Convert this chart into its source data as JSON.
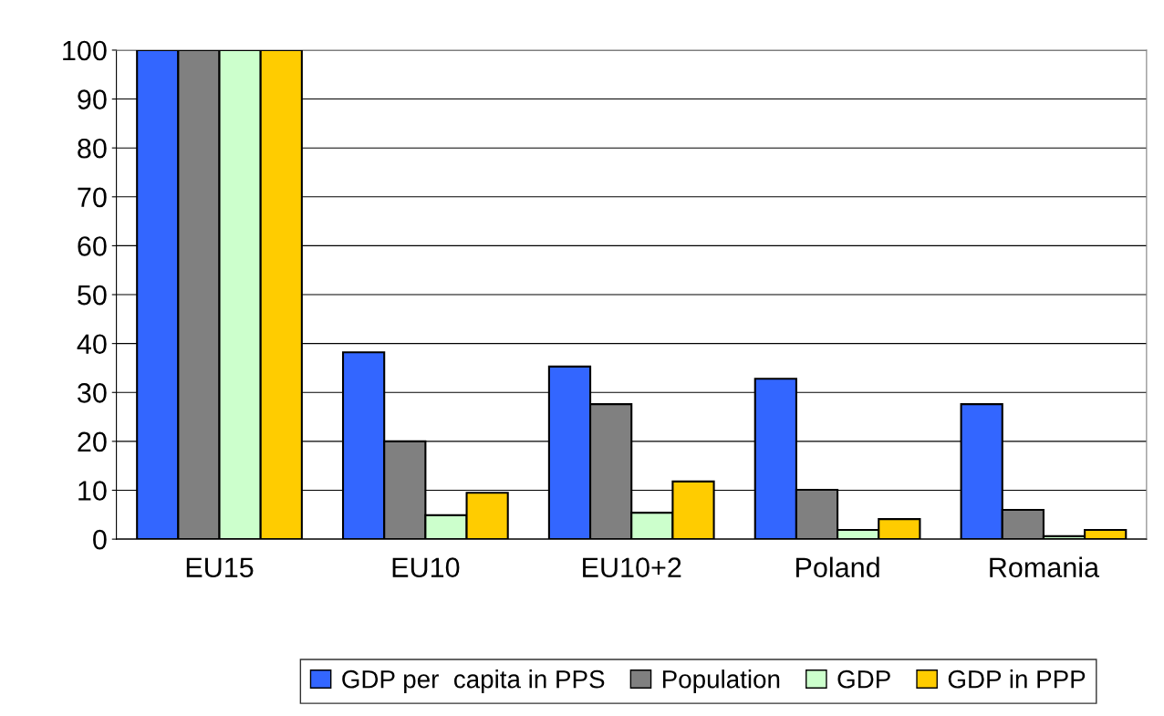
{
  "chart_data": {
    "type": "bar",
    "categories": [
      "EU15",
      "EU10",
      "EU10+2",
      "Poland",
      "Romania"
    ],
    "series": [
      {
        "name": "GDP per  capita in PPS",
        "color": "#3366ff",
        "values": [
          100,
          38.2,
          35.3,
          32.8,
          27.6
        ]
      },
      {
        "name": "Population",
        "color": "#808080",
        "values": [
          100,
          20,
          27.6,
          10.1,
          6.0
        ]
      },
      {
        "name": "GDP",
        "color": "#ccffcc",
        "values": [
          100,
          4.9,
          5.4,
          1.9,
          0.6
        ]
      },
      {
        "name": "GDP in PPP",
        "color": "#ffcc00",
        "values": [
          100,
          9.5,
          11.8,
          4.1,
          1.9
        ]
      }
    ],
    "ylim": [
      0,
      100
    ],
    "yticks": [
      0,
      10,
      20,
      30,
      40,
      50,
      60,
      70,
      80,
      90,
      100
    ],
    "grid": "y",
    "legend": "bottom"
  }
}
